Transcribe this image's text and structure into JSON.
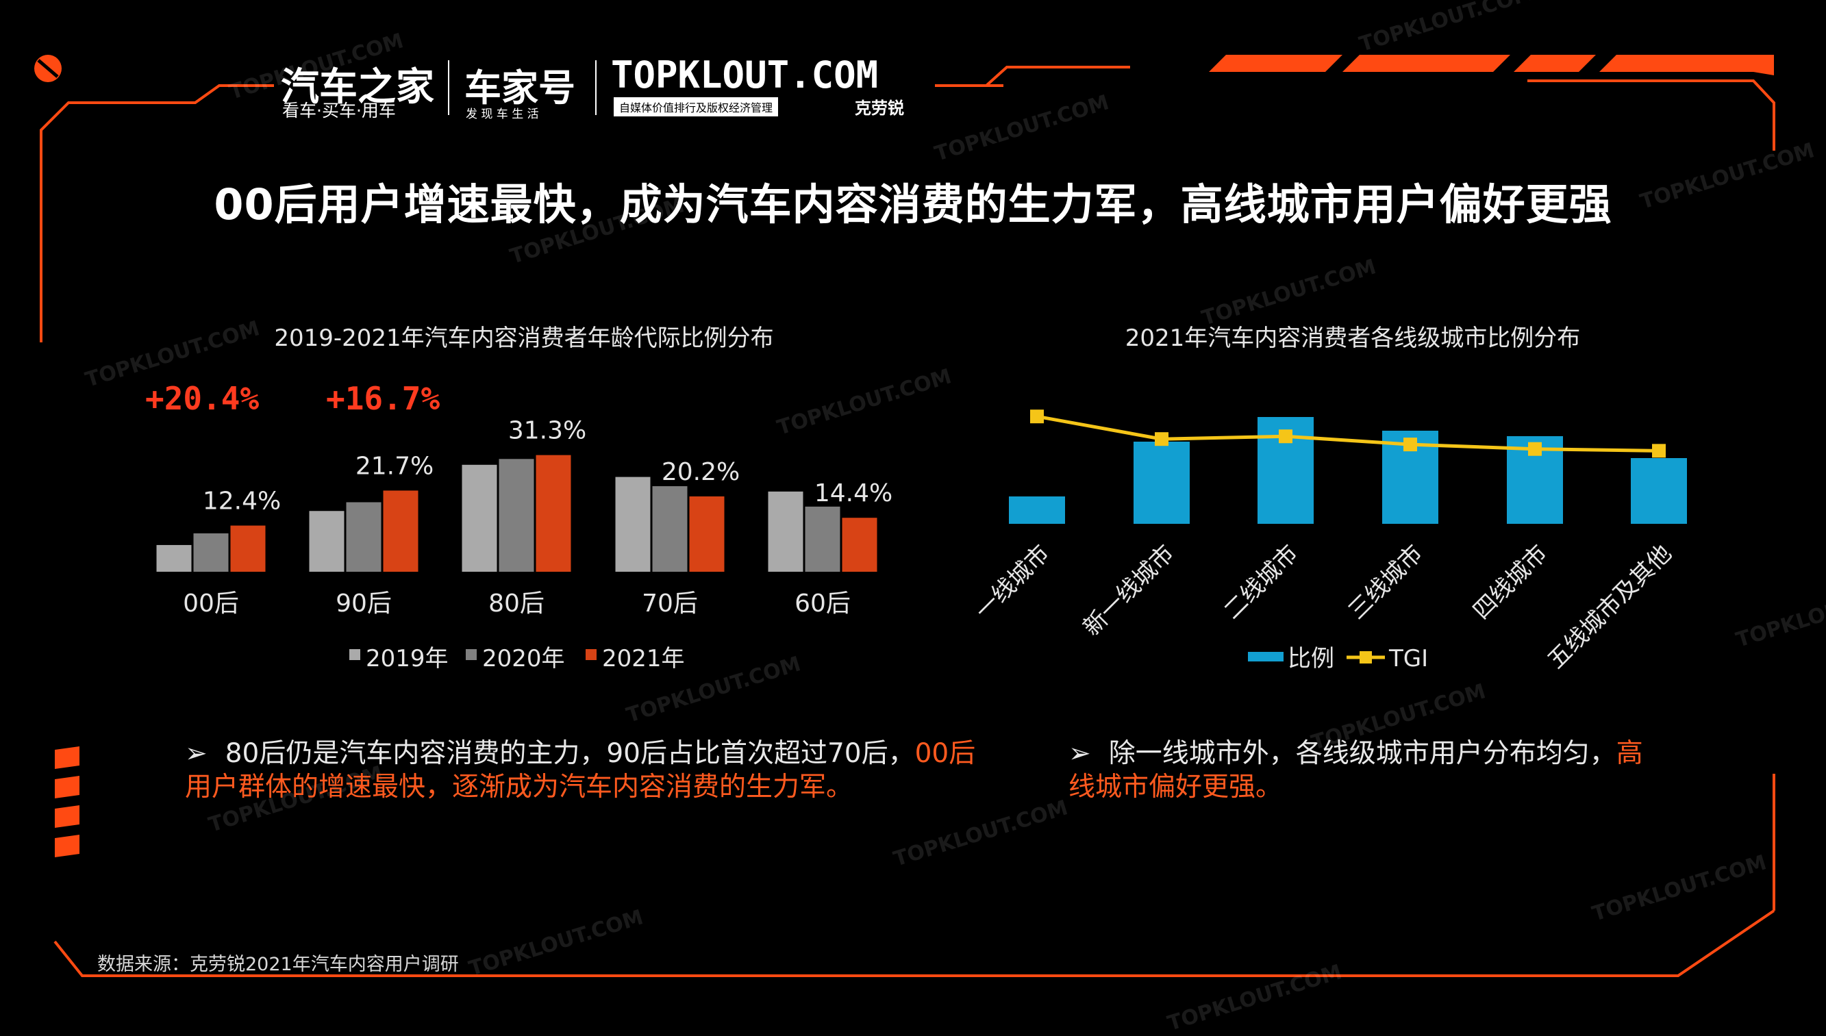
{
  "header": {
    "logo_autohome": "汽车之家",
    "logo_autohome_sub": "看车·买车·用车",
    "logo_chejiahao": "车家号",
    "logo_chejiahao_sub": "发 现 车 生 活",
    "logo_topklout": "TOPKLOUT.COM",
    "logo_topklout_sub": "自媒体价值排行及版权经济管理",
    "logo_topklout_cn": "克劳锐"
  },
  "title": "00后用户增速最快，成为汽车内容消费的生力军，高线城市用户偏好更强",
  "growth_labels": [
    "+20.4%",
    "+16.7%"
  ],
  "chart_data": [
    {
      "type": "bar",
      "title": "2019-2021年汽车内容消费者年龄代际比例分布",
      "categories": [
        "00后",
        "90后",
        "80后",
        "70后",
        "60后"
      ],
      "series": [
        {
          "name": "2019年",
          "values": [
            5.5,
            12.5,
            22.0,
            19.5,
            16.5
          ]
        },
        {
          "name": "2020年",
          "values": [
            7.9,
            14.3,
            23.2,
            17.6,
            13.4
          ]
        },
        {
          "name": "2021年",
          "values": [
            9.5,
            16.7,
            24.0,
            15.5,
            11.1
          ]
        }
      ],
      "data_labels": [
        "12.4%",
        "21.7%",
        "31.3%",
        "20.2%",
        "14.4%"
      ],
      "legend": "bottom",
      "colors": [
        "#aaaaaa",
        "#808080",
        "#d84315"
      ]
    },
    {
      "type": "bar",
      "title": "2021年汽车内容消费者各线级城市比例分布",
      "categories": [
        "一线城市",
        "新一线城市",
        "二线城市",
        "三线城市",
        "四线城市",
        "五线城市及其他"
      ],
      "series": [
        {
          "name": "比例",
          "type": "bar",
          "values": [
            5,
            15,
            19.5,
            17,
            16,
            12
          ]
        },
        {
          "name": "TGI",
          "type": "line",
          "values": [
            140,
            115,
            118,
            109,
            104,
            102
          ]
        }
      ],
      "legend": "bottom",
      "colors": [
        "#129fd1",
        "#f5c518"
      ]
    }
  ],
  "bullets": [
    {
      "normal": "80后仍是汽车内容消费的主力，90后占比首次超过70后，",
      "highlight": "00后用户群体的增速最快，逐渐成为汽车内容消费的生力军。"
    },
    {
      "normal": "除一线城市外，各线级城市用户分布均匀，",
      "highlight": "高线城市偏好更强。"
    }
  ],
  "bullet_marker": "➢",
  "source": "数据来源：克劳锐2021年汽车内容用户调研",
  "watermark": "TOPKLOUT.COM",
  "accent_color": "#ff5a1f"
}
